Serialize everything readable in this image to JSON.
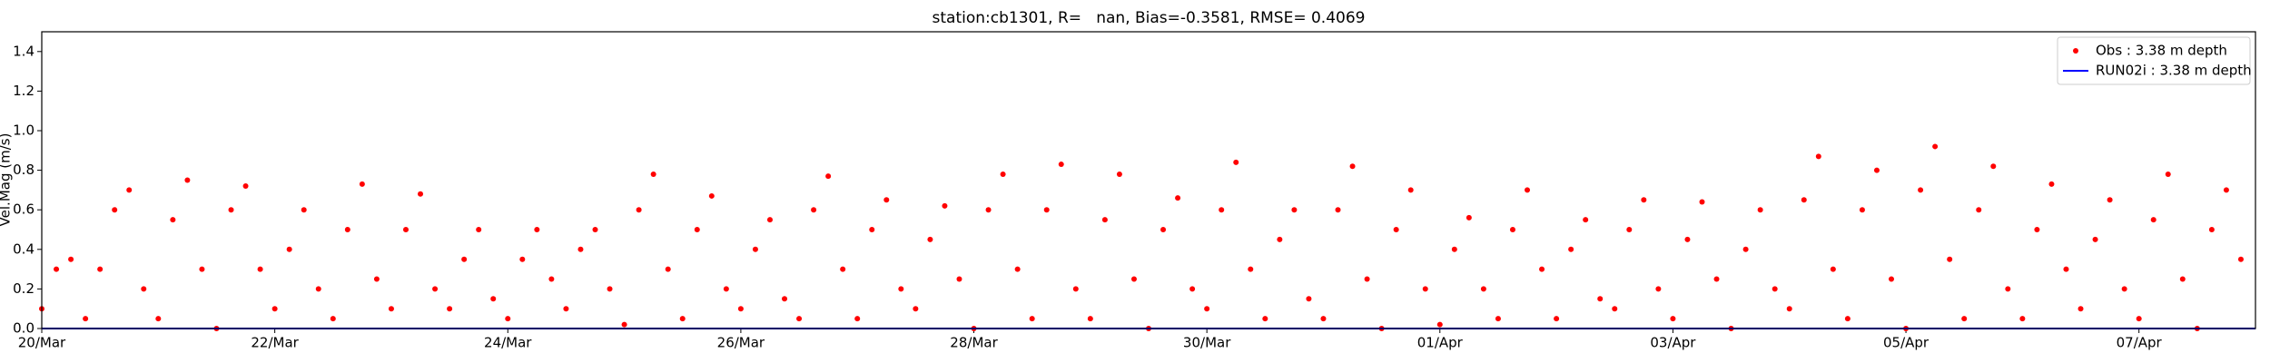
{
  "chart_data": {
    "type": "scatter",
    "title": "station:cb1301, R=   nan, Bias=-0.3581, RMSE= 0.4069",
    "ylabel": "Vel.Mag (m/s)",
    "xlim": [
      0,
      19
    ],
    "ylim": [
      0,
      1.5
    ],
    "xticks": [
      {
        "value": 0,
        "label": "20/Mar"
      },
      {
        "value": 2,
        "label": "22/Mar"
      },
      {
        "value": 4,
        "label": "24/Mar"
      },
      {
        "value": 6,
        "label": "26/Mar"
      },
      {
        "value": 8,
        "label": "28/Mar"
      },
      {
        "value": 10,
        "label": "30/Mar"
      },
      {
        "value": 12,
        "label": "01/Apr"
      },
      {
        "value": 14,
        "label": "03/Apr"
      },
      {
        "value": 16,
        "label": "05/Apr"
      },
      {
        "value": 18,
        "label": "07/Apr"
      }
    ],
    "yticks": [
      {
        "value": 0,
        "label": "0.0"
      },
      {
        "value": 0.2,
        "label": "0.2"
      },
      {
        "value": 0.4,
        "label": "0.4"
      },
      {
        "value": 0.6,
        "label": "0.6"
      },
      {
        "value": 0.8,
        "label": "0.8"
      },
      {
        "value": 1.0,
        "label": "1.0"
      },
      {
        "value": 1.2,
        "label": "1.2"
      },
      {
        "value": 1.4,
        "label": "1.4"
      }
    ],
    "legend": "upper right",
    "series": [
      {
        "name": "Obs : 3.38 m depth",
        "color": "#ff0000",
        "style": "markers",
        "x": [
          0,
          0.125,
          0.25,
          0.375,
          0.5,
          0.625,
          0.75,
          0.875,
          1,
          1.125,
          1.25,
          1.375,
          1.5,
          1.625,
          1.75,
          1.875,
          2,
          2.125,
          2.25,
          2.375,
          2.5,
          2.625,
          2.75,
          2.875,
          3,
          3.125,
          3.25,
          3.375,
          3.5,
          3.625,
          3.75,
          3.875,
          4,
          4.125,
          4.25,
          4.375,
          4.5,
          4.625,
          4.75,
          4.875,
          5,
          5.125,
          5.25,
          5.375,
          5.5,
          5.625,
          5.75,
          5.875,
          6,
          6.125,
          6.25,
          6.375,
          6.5,
          6.625,
          6.75,
          6.875,
          7,
          7.125,
          7.25,
          7.375,
          7.5,
          7.625,
          7.75,
          7.875,
          8,
          8.125,
          8.25,
          8.375,
          8.5,
          8.625,
          8.75,
          8.875,
          9,
          9.125,
          9.25,
          9.375,
          9.5,
          9.625,
          9.75,
          9.875,
          10,
          10.125,
          10.25,
          10.375,
          10.5,
          10.625,
          10.75,
          10.875,
          11,
          11.125,
          11.25,
          11.375,
          11.5,
          11.625,
          11.75,
          11.875,
          12,
          12.125,
          12.25,
          12.375,
          12.5,
          12.625,
          12.75,
          12.875,
          13,
          13.125,
          13.25,
          13.375,
          13.5,
          13.625,
          13.75,
          13.875,
          14,
          14.125,
          14.25,
          14.375,
          14.5,
          14.625,
          14.75,
          14.875,
          15,
          15.125,
          15.25,
          15.375,
          15.5,
          15.625,
          15.75,
          15.875,
          16,
          16.125,
          16.25,
          16.375,
          16.5,
          16.625,
          16.75,
          16.875,
          17,
          17.125,
          17.25,
          17.375,
          17.5,
          17.625,
          17.75,
          17.875,
          18,
          18.125,
          18.25,
          18.375,
          18.5,
          18.625,
          18.75,
          18.875
        ],
        "values": [
          0.1,
          0.3,
          0.35,
          0.05,
          0.3,
          0.6,
          0.7,
          0.2,
          0.05,
          0.55,
          0.75,
          0.3,
          0.0,
          0.6,
          0.72,
          0.3,
          0.1,
          0.4,
          0.6,
          0.2,
          0.05,
          0.5,
          0.73,
          0.25,
          0.1,
          0.5,
          0.68,
          0.2,
          0.1,
          0.35,
          0.5,
          0.15,
          0.05,
          0.35,
          0.5,
          0.25,
          0.1,
          0.4,
          0.5,
          0.2,
          0.02,
          0.6,
          0.78,
          0.3,
          0.05,
          0.5,
          0.67,
          0.2,
          0.1,
          0.4,
          0.55,
          0.15,
          0.05,
          0.6,
          0.77,
          0.3,
          0.05,
          0.5,
          0.65,
          0.2,
          0.1,
          0.45,
          0.62,
          0.25,
          0.0,
          0.6,
          0.78,
          0.3,
          0.05,
          0.6,
          0.83,
          0.2,
          0.05,
          0.55,
          0.78,
          0.25,
          0.0,
          0.5,
          0.66,
          0.2,
          0.1,
          0.6,
          0.84,
          0.3,
          0.05,
          0.45,
          0.6,
          0.15,
          0.05,
          0.6,
          0.82,
          0.25,
          0.0,
          0.5,
          0.7,
          0.2,
          0.02,
          0.4,
          0.56,
          0.2,
          0.05,
          0.5,
          0.7,
          0.3,
          0.05,
          0.4,
          0.55,
          0.15,
          0.1,
          0.5,
          0.65,
          0.2,
          0.05,
          0.45,
          0.64,
          0.25,
          0.0,
          0.4,
          0.6,
          0.2,
          0.1,
          0.65,
          0.87,
          0.3,
          0.05,
          0.6,
          0.8,
          0.25,
          0.0,
          0.7,
          0.92,
          0.35,
          0.05,
          0.6,
          0.82,
          0.2,
          0.05,
          0.5,
          0.73,
          0.3,
          0.1,
          0.45,
          0.65,
          0.2,
          0.05,
          0.55,
          0.78,
          0.25,
          0.0,
          0.5,
          0.7,
          0.35
        ]
      },
      {
        "name": "RUN02i : 3.38 m depth",
        "color": "#0000ff",
        "style": "line",
        "x": [
          0,
          19
        ],
        "values": [
          0,
          0
        ]
      }
    ]
  }
}
